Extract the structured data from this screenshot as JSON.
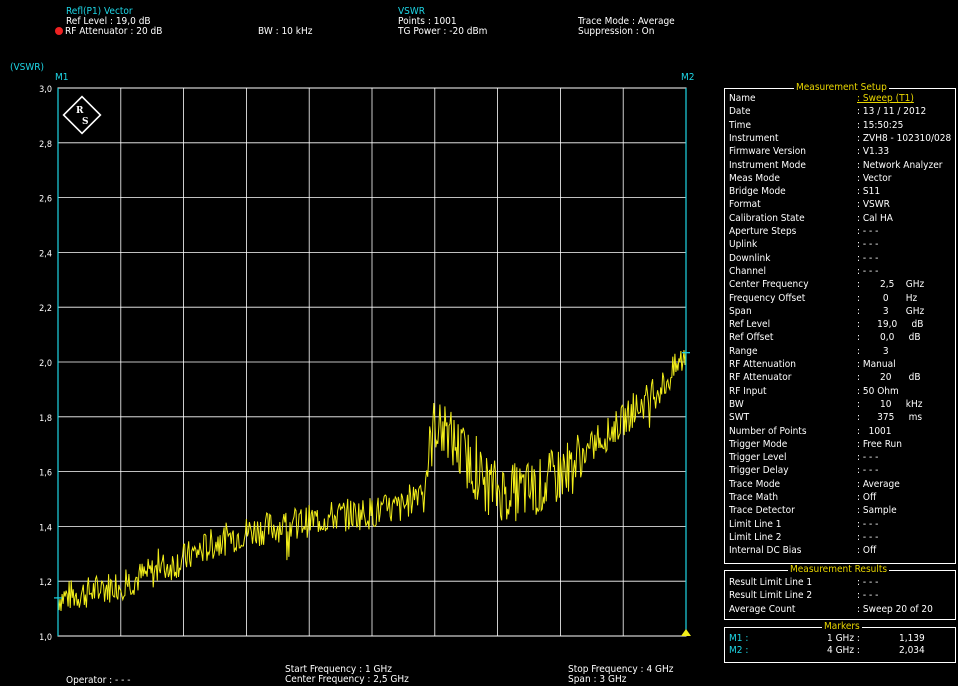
{
  "header": {
    "trace_title": "Refl(P1) Vector",
    "ref_level": "Ref Level       : 19,0 dB",
    "rf_att": "RF Attenuator : 20   dB",
    "bw": "BW : 10 kHz",
    "mode_title": "VSWR",
    "points": "Points      : 1001",
    "tg_power": "TG Power : -20 dBm",
    "trace_mode": "Trace Mode : Average",
    "suppression": "Suppression : On"
  },
  "chart_data": {
    "type": "line",
    "ylabel": "(VSWR)",
    "ylim": [
      1.0,
      3.0
    ],
    "xlim": [
      1,
      4
    ],
    "x_unit": "GHz",
    "yticks": [
      "3,0",
      "2,8",
      "2,6",
      "2,4",
      "2,2",
      "2,0",
      "1,8",
      "1,6",
      "1,4",
      "1,2",
      "1,0"
    ],
    "grid": true,
    "trace_color": "#f2ee1a",
    "markers": [
      {
        "name": "M1",
        "x": 1,
        "y": 1.139
      },
      {
        "name": "M2",
        "x": 4,
        "y": 2.034
      }
    ],
    "series": [
      {
        "x": [
          1.0,
          1.15,
          1.3,
          1.45,
          1.6,
          1.75,
          1.9,
          2.05,
          2.2,
          2.35,
          2.5,
          2.65,
          2.75,
          2.8,
          2.9,
          3.0,
          3.05,
          3.15,
          3.3,
          3.45,
          3.6,
          3.75,
          3.9,
          4.0
        ],
        "values": [
          1.14,
          1.16,
          1.19,
          1.23,
          1.28,
          1.34,
          1.38,
          1.4,
          1.42,
          1.44,
          1.45,
          1.47,
          1.56,
          1.78,
          1.7,
          1.6,
          1.55,
          1.52,
          1.54,
          1.62,
          1.72,
          1.82,
          1.92,
          2.03
        ]
      }
    ]
  },
  "footer": {
    "operator": "Operator : - - -",
    "start_freq": "Start Frequency   : 1   GHz",
    "center_freq": "Center Frequency : 2,5 GHz",
    "stop_freq": "Stop Frequency : 4 GHz",
    "span": "Span                 : 3 GHz"
  },
  "setup": {
    "title": "Measurement Setup",
    "rows": [
      [
        "Name",
        ": Sweep (T1)"
      ],
      [
        "Date",
        ": 13 / 11 / 2012"
      ],
      [
        "Time",
        ": 15:50:25"
      ],
      [
        "Instrument",
        ": ZVH8 - 102310/028"
      ],
      [
        "Firmware Version",
        ": V1.33"
      ],
      [
        "Instrument Mode",
        ": Network Analyzer"
      ],
      [
        "Meas Mode",
        ": Vector"
      ],
      [
        "Bridge Mode",
        ": S11"
      ],
      [
        "Format",
        ": VSWR"
      ],
      [
        "Calibration State",
        ": Cal HA"
      ],
      [
        "Aperture Steps",
        ": - - -"
      ],
      [
        "Uplink",
        ": - - -"
      ],
      [
        "Downlink",
        ": - - -"
      ],
      [
        "Channel",
        ": - - -"
      ],
      [
        "Center Frequency",
        ":       2,5    GHz"
      ],
      [
        "Frequency Offset",
        ":        0      Hz"
      ],
      [
        "Span",
        ":        3      GHz"
      ],
      [
        "Ref Level",
        ":      19,0     dB"
      ],
      [
        "Ref Offset",
        ":       0,0     dB"
      ],
      [
        "Range",
        ":        3"
      ],
      [
        "RF Attenuation",
        ": Manual"
      ],
      [
        "RF Attenuator",
        ":       20      dB"
      ],
      [
        "RF Input",
        ": 50 Ohm"
      ],
      [
        "BW",
        ":       10     kHz"
      ],
      [
        "SWT",
        ":      375     ms"
      ],
      [
        "Number of Points",
        ":   1001"
      ],
      [
        "Trigger Mode",
        ": Free Run"
      ],
      [
        "Trigger Level",
        ": - - -"
      ],
      [
        "Trigger Delay",
        ": - - -"
      ],
      [
        "Trace Mode",
        ": Average"
      ],
      [
        "Trace Math",
        ": Off"
      ],
      [
        "Trace Detector",
        ": Sample"
      ],
      [
        "Limit Line 1",
        ": - - -"
      ],
      [
        "Limit Line 2",
        ": - - -"
      ],
      [
        "Internal DC Bias",
        ": Off"
      ]
    ]
  },
  "results": {
    "title": "Measurement Results",
    "rows": [
      [
        "Result Limit Line 1",
        ": - - -"
      ],
      [
        "Result Limit Line 2",
        ": - - -"
      ],
      [
        "Average Count",
        ": Sweep 20 of 20"
      ]
    ]
  },
  "markers_box": {
    "title": "Markers",
    "rows": [
      {
        "name": "M1 :",
        "freq": "1 GHz :",
        "val": "1,139"
      },
      {
        "name": "M2 :",
        "freq": "4 GHz :",
        "val": "2,034"
      }
    ]
  }
}
